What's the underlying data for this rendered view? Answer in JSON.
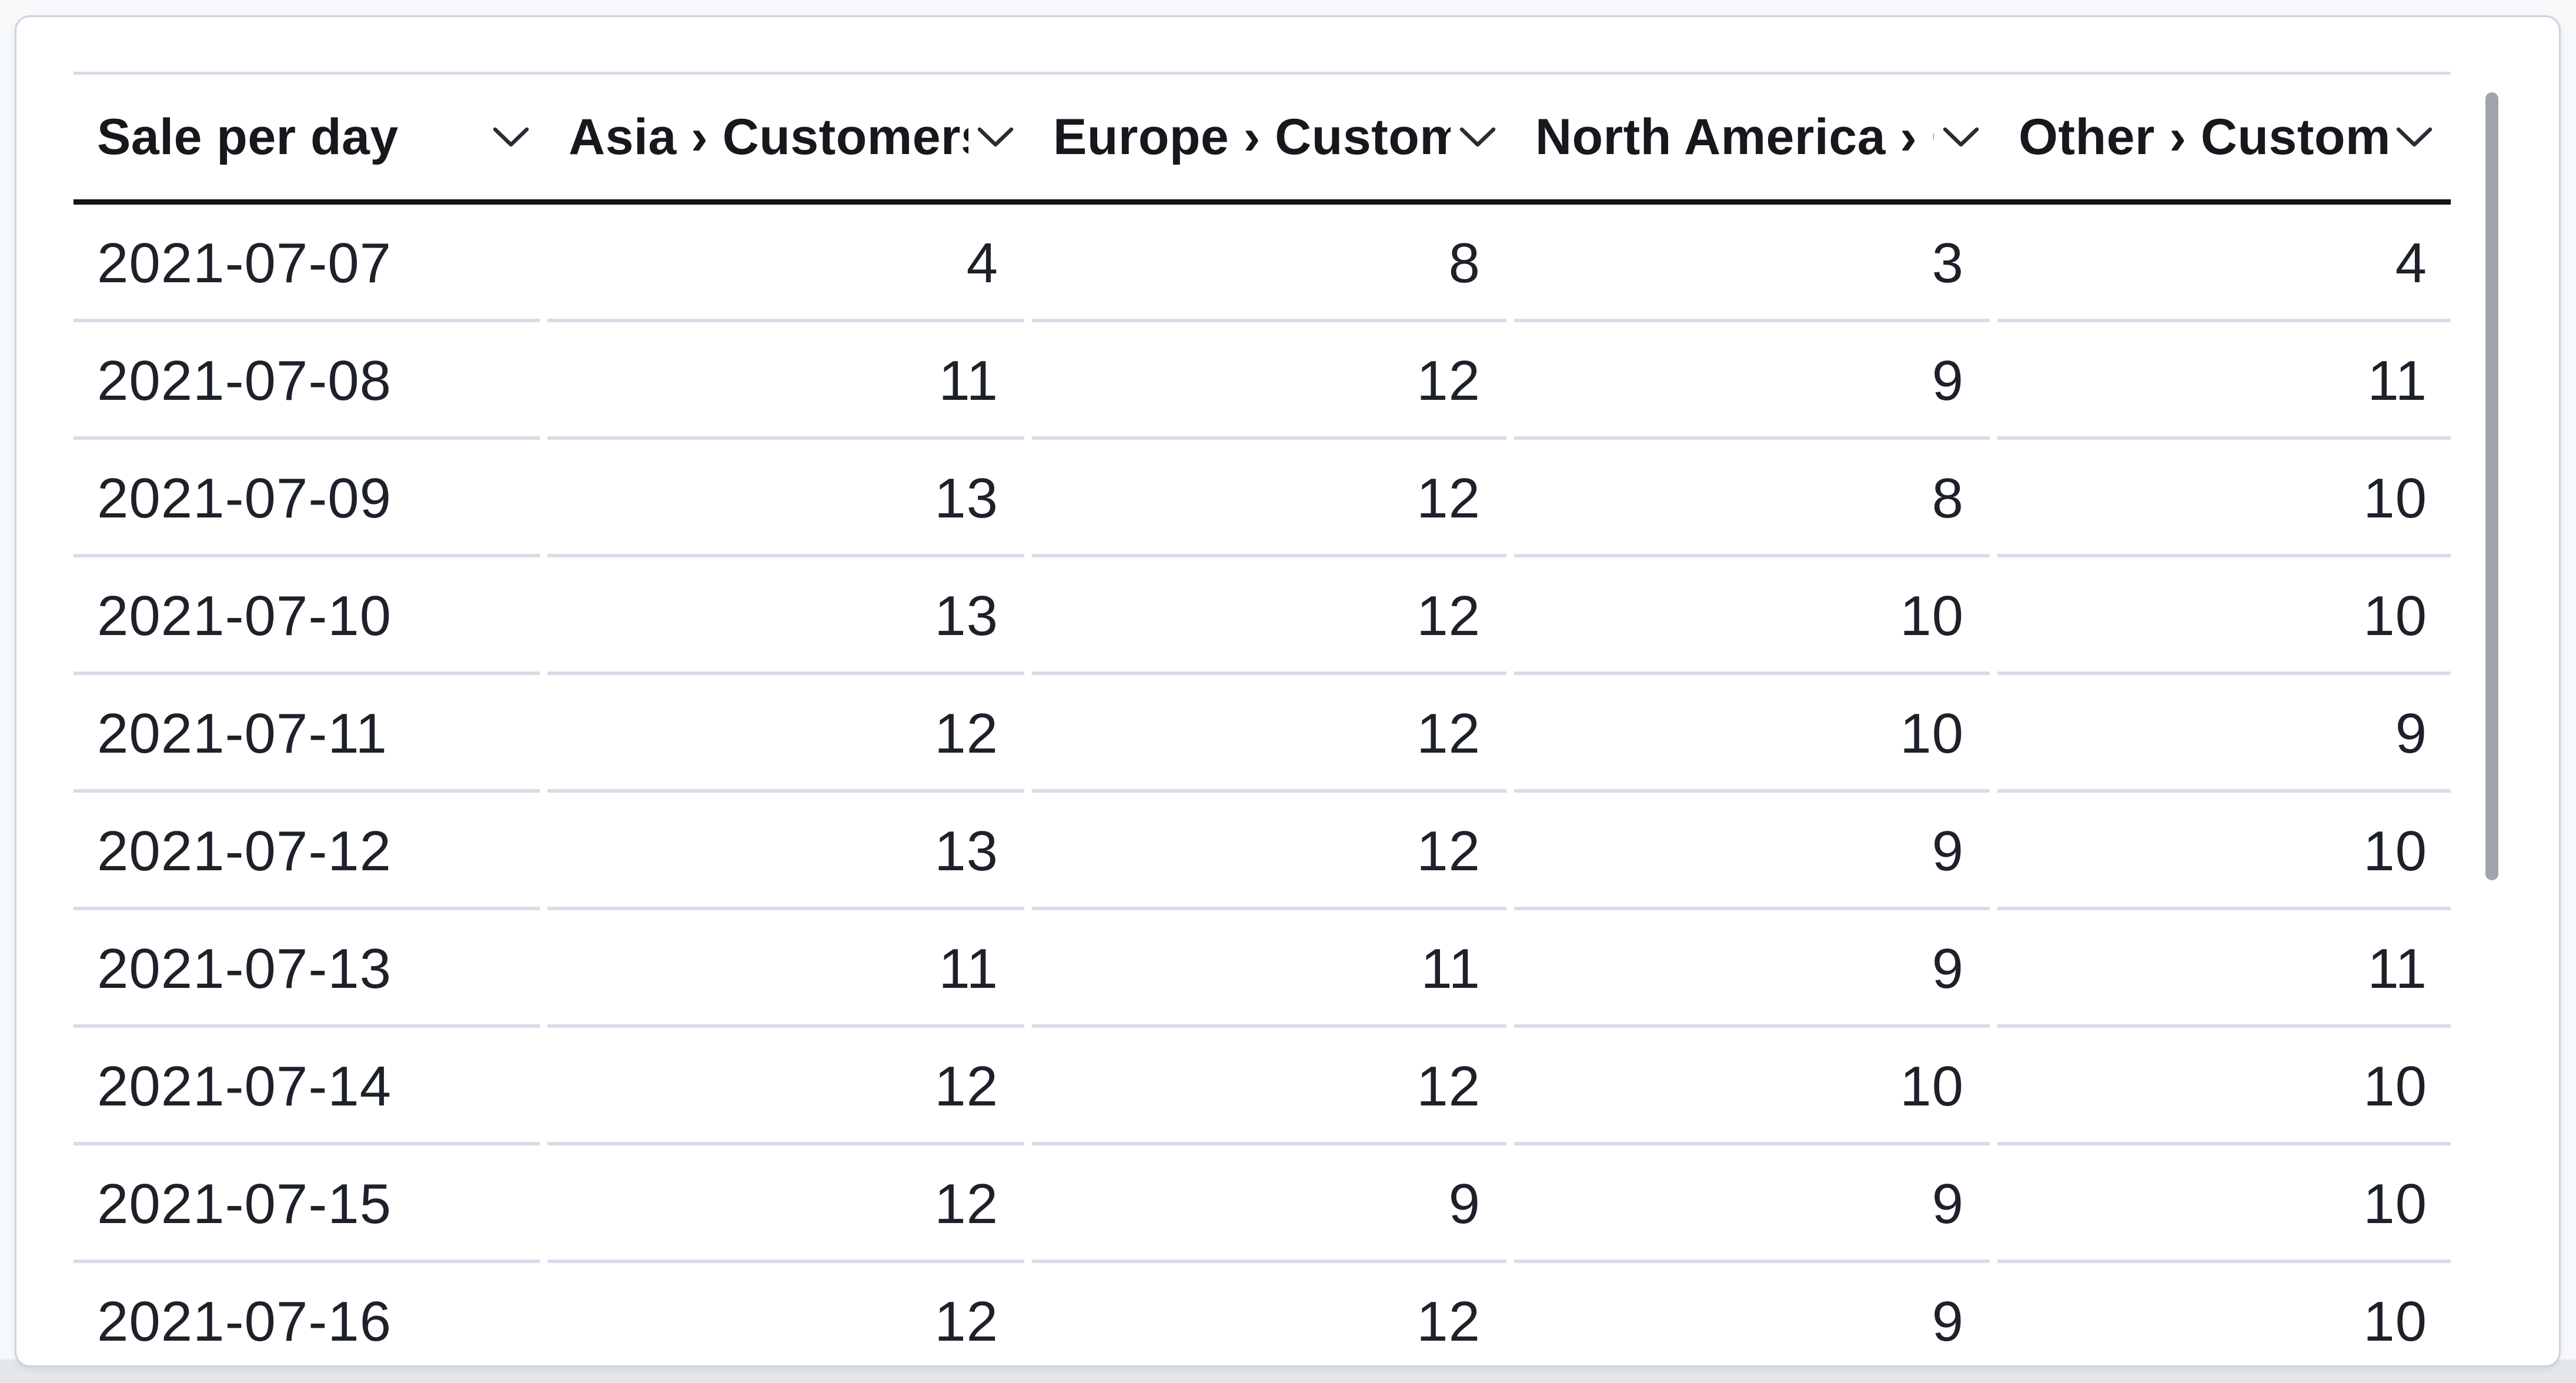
{
  "table": {
    "columns": [
      {
        "label": "Sale per day",
        "align": "left"
      },
      {
        "label": "Asia › Customers",
        "align": "right"
      },
      {
        "label": "Europe › Customers",
        "align": "right"
      },
      {
        "label": "North America › Customers",
        "align": "right"
      },
      {
        "label": "Other › Customers",
        "align": "right"
      }
    ],
    "rows": [
      [
        "2021-07-07",
        "4",
        "8",
        "3",
        "4"
      ],
      [
        "2021-07-08",
        "11",
        "12",
        "9",
        "11"
      ],
      [
        "2021-07-09",
        "13",
        "12",
        "8",
        "10"
      ],
      [
        "2021-07-10",
        "13",
        "12",
        "10",
        "10"
      ],
      [
        "2021-07-11",
        "12",
        "12",
        "10",
        "9"
      ],
      [
        "2021-07-12",
        "13",
        "12",
        "9",
        "10"
      ],
      [
        "2021-07-13",
        "11",
        "11",
        "9",
        "11"
      ],
      [
        "2021-07-14",
        "12",
        "12",
        "10",
        "10"
      ],
      [
        "2021-07-15",
        "12",
        "9",
        "9",
        "10"
      ],
      [
        "2021-07-16",
        "12",
        "12",
        "9",
        "10"
      ]
    ]
  },
  "icons": {
    "column_dropdown": "chevron-down-icon"
  },
  "scrollbar": {
    "orientation": "vertical"
  },
  "colors": {
    "card_background": "#ffffff",
    "card_border": "#cad3e0",
    "header_underline": "#111317",
    "row_separator": "#d6dde8",
    "text": "#1d2129",
    "header_text": "#16181d",
    "scrollbar_thumb": "#a2a4ab",
    "page_bottom_strip": "#e3e6eb"
  }
}
